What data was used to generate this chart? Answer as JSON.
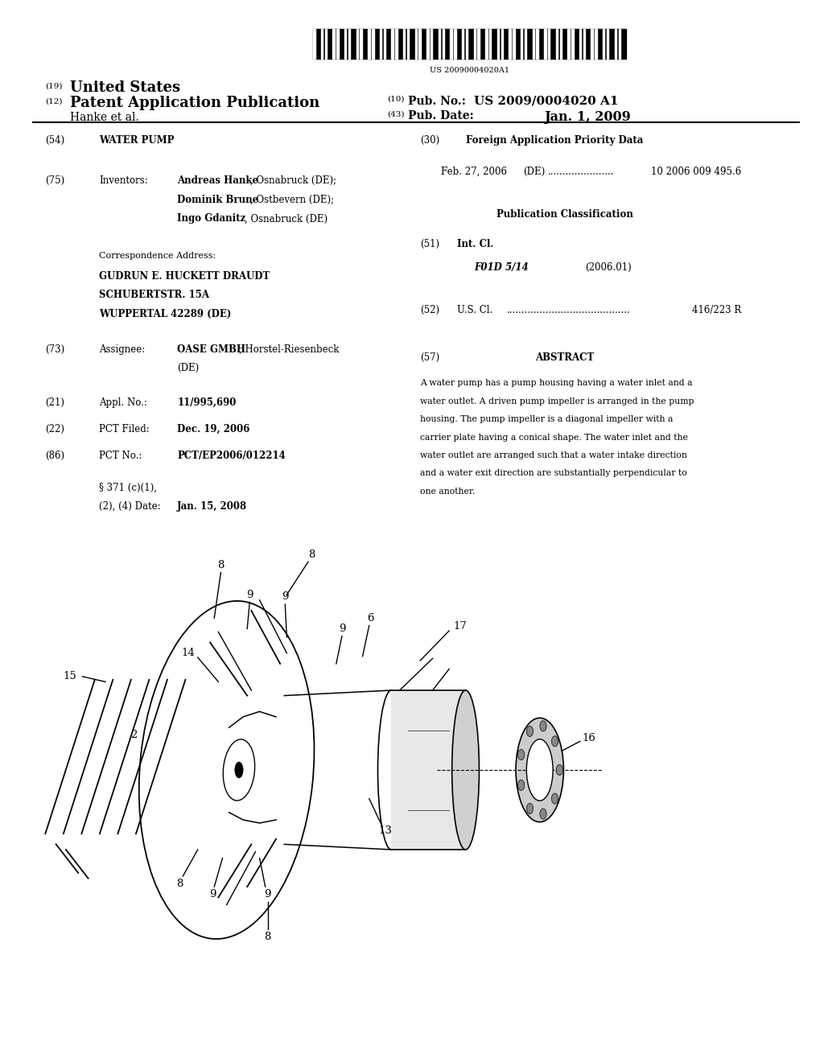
{
  "background_color": "#ffffff",
  "page_width": 10.24,
  "page_height": 13.2,
  "barcode_text": "US 20090004020A1",
  "header": {
    "number_19": "(19)",
    "united_states": "United States",
    "number_12": "(12)",
    "patent_app": "Patent Application Publication",
    "hanke_et_al": "Hanke et al.",
    "number_10": "(10)",
    "pub_no_label": "Pub. No.:",
    "pub_no": "US 2009/0004020 A1",
    "number_43": "(43)",
    "pub_date_label": "Pub. Date:",
    "pub_date": "Jan. 1, 2009"
  },
  "left_col": {
    "s54_num": "(54)",
    "s54_label": "WATER PUMP",
    "s75_num": "(75)",
    "s75_label": "Inventors:",
    "corr_label": "Correspondence Address:",
    "corr_val": "GUDRUN E. HUCKETT DRAUDT\nSCHUBERTSTR. 15A\nWUPPERTAL 42289 (DE)",
    "s73_num": "(73)",
    "s73_label": "Assignee:",
    "s21_num": "(21)",
    "s21_label": "Appl. No.:",
    "s21_val": "11/995,690",
    "s22_num": "(22)",
    "s22_label": "PCT Filed:",
    "s22_val": "Dec. 19, 2006",
    "s86_num": "(86)",
    "s86_label": "PCT No.:",
    "s86_val": "PCT/EP2006/012214",
    "s371_val": "Jan. 15, 2008"
  },
  "right_col": {
    "s30_num": "(30)",
    "s30_label": "Foreign Application Priority Data",
    "s30_date": "Feb. 27, 2006",
    "s30_number": "10 2006 009 495.6",
    "pub_class_label": "Publication Classification",
    "s51_num": "(51)",
    "s51_label": "Int. Cl.",
    "s51_class": "F01D 5/14",
    "s51_year": "(2006.01)",
    "s52_num": "(52)",
    "s52_label": "U.S. Cl.",
    "s52_val": "416/223 R",
    "s57_num": "(57)",
    "s57_label": "ABSTRACT",
    "s57_lines": [
      "A water pump has a pump housing having a water inlet and a",
      "water outlet. A driven pump impeller is arranged in the pump",
      "housing. The pump impeller is a diagonal impeller with a",
      "carrier plate having a conical shape. The water inlet and the",
      "water outlet are arranged such that a water intake direction",
      "and a water exit direction are substantially perpendicular to",
      "one another."
    ]
  }
}
